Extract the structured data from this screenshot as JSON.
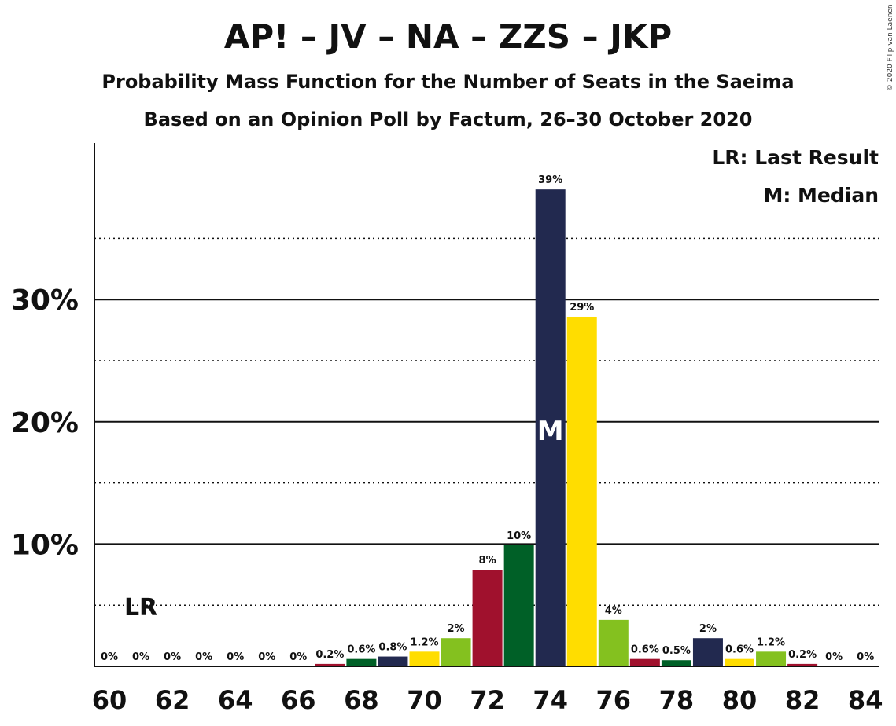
{
  "title": "AP! – JV – NA – ZZS – JKP",
  "subtitle_1": "Probability Mass Function for the Number of Seats in the Saeima",
  "subtitle_2": "Based on an Opinion Poll by Factum, 26–30 October 2020",
  "legend": {
    "last_result": "LR: Last Result",
    "median": "M: Median"
  },
  "copyright": "© 2020 Filip van Laenen",
  "colors": {
    "navy": "#22294f",
    "yellow": "#ffdd00",
    "lime": "#84c11f",
    "red": "#a0112d",
    "green": "#006027"
  },
  "chart_data": {
    "type": "bar",
    "x": [
      60,
      61,
      62,
      63,
      64,
      65,
      66,
      67,
      68,
      69,
      70,
      71,
      72,
      73,
      74,
      75,
      76,
      77,
      78,
      79,
      80,
      81,
      82,
      83,
      84
    ],
    "values": [
      0,
      0,
      0,
      0,
      0,
      0,
      0,
      0.2,
      0.6,
      0.8,
      1.2,
      2.3,
      7.9,
      9.9,
      39.0,
      28.6,
      3.8,
      0.6,
      0.5,
      2.3,
      0.6,
      1.2,
      0.2,
      0,
      0
    ],
    "data_labels": [
      "0%",
      "0%",
      "0%",
      "0%",
      "0%",
      "0%",
      "0%",
      "0.2%",
      "0.6%",
      "0.8%",
      "1.2%",
      "2%",
      "8%",
      "10%",
      "39%",
      "29%",
      "4%",
      "0.6%",
      "0.5%",
      "2%",
      "0.6%",
      "1.2%",
      "0.2%",
      "0%",
      "0%"
    ],
    "bar_colors": [
      "#84c11f",
      "#a0112d",
      "#006027",
      "#22294f",
      "#ffdd00",
      "#84c11f",
      "#a0112d",
      "#a0112d",
      "#006027",
      "#22294f",
      "#ffdd00",
      "#84c11f",
      "#a0112d",
      "#006027",
      "#22294f",
      "#ffdd00",
      "#84c11f",
      "#a0112d",
      "#006027",
      "#22294f",
      "#ffdd00",
      "#84c11f",
      "#a0112d",
      "#006027",
      "#22294f"
    ],
    "x_tick_labels": [
      "60",
      "62",
      "64",
      "66",
      "68",
      "70",
      "72",
      "74",
      "76",
      "78",
      "80",
      "82",
      "84"
    ],
    "x_ticks": [
      60,
      62,
      64,
      66,
      68,
      70,
      72,
      74,
      76,
      78,
      80,
      82,
      84
    ],
    "y_tick_labels": [
      "10%",
      "20%",
      "30%"
    ],
    "y_ticks": [
      10,
      20,
      30
    ],
    "y_minor_ticks": [
      5,
      15,
      25,
      35
    ],
    "ylim": [
      0,
      42
    ],
    "last_result_seat": 61,
    "last_result_label": "LR",
    "median_seat": 74,
    "median_label": "M",
    "grid": true
  }
}
